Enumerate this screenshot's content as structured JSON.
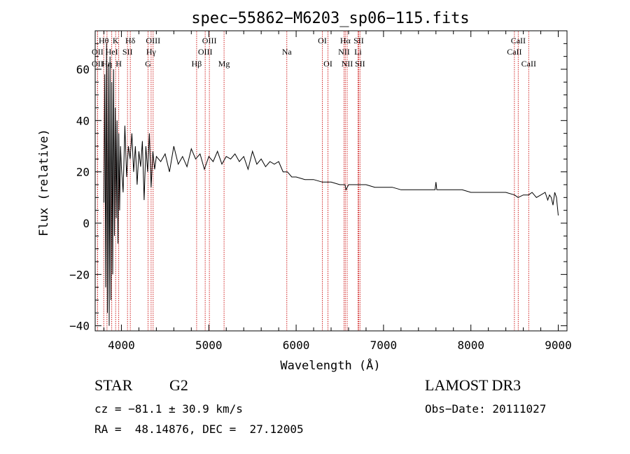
{
  "chart_data": {
    "type": "line",
    "title": "spec−55862−M6203_sp06−115.fits",
    "xlabel": "Wavelength (Å)",
    "ylabel": "Flux (relative)",
    "xlim": [
      3700,
      9100
    ],
    "ylim": [
      -42,
      75
    ],
    "xticks": [
      4000,
      5000,
      6000,
      7000,
      8000,
      9000
    ],
    "yticks": [
      -40,
      -20,
      0,
      20,
      40,
      60
    ],
    "ytick_labels": [
      "−40",
      "−20",
      "0",
      "20",
      "40",
      "60"
    ],
    "series": [
      {
        "name": "flux",
        "x": [
          3800,
          3810,
          3820,
          3830,
          3840,
          3850,
          3860,
          3870,
          3880,
          3890,
          3900,
          3910,
          3920,
          3930,
          3940,
          3950,
          3960,
          3970,
          3980,
          3990,
          4000,
          4020,
          4040,
          4060,
          4080,
          4100,
          4120,
          4140,
          4160,
          4180,
          4200,
          4220,
          4240,
          4260,
          4280,
          4300,
          4320,
          4340,
          4360,
          4380,
          4400,
          4450,
          4500,
          4550,
          4600,
          4650,
          4700,
          4750,
          4800,
          4850,
          4900,
          4950,
          5000,
          5050,
          5100,
          5150,
          5200,
          5250,
          5300,
          5350,
          5400,
          5450,
          5500,
          5550,
          5600,
          5650,
          5700,
          5750,
          5800,
          5850,
          5900,
          5950,
          6000,
          6100,
          6200,
          6300,
          6400,
          6500,
          6560,
          6570,
          6600,
          6700,
          6800,
          6900,
          7000,
          7100,
          7200,
          7300,
          7400,
          7500,
          7590,
          7600,
          7610,
          7700,
          7800,
          7900,
          8000,
          8100,
          8200,
          8300,
          8400,
          8500,
          8540,
          8600,
          8660,
          8700,
          8750,
          8800,
          8850,
          8880,
          8900,
          8920,
          8940,
          8960,
          8980,
          9000
        ],
        "y": [
          8,
          58,
          -25,
          70,
          -35,
          62,
          -40,
          65,
          -30,
          55,
          -20,
          60,
          -5,
          45,
          2,
          40,
          -8,
          35,
          5,
          30,
          22,
          12,
          38,
          18,
          30,
          25,
          35,
          20,
          30,
          15,
          28,
          22,
          32,
          9,
          30,
          20,
          35,
          14,
          28,
          21,
          26,
          24,
          27,
          20,
          30,
          23,
          26,
          22,
          29,
          25,
          27,
          21,
          26,
          24,
          28,
          23,
          26,
          25,
          27,
          24,
          26,
          21,
          28,
          23,
          25,
          22,
          24,
          23,
          24,
          20,
          20,
          18,
          18,
          17,
          17,
          16,
          16,
          15,
          15,
          13,
          15,
          15,
          15,
          14,
          14,
          14,
          13,
          13,
          13,
          13,
          13,
          16,
          13,
          13,
          13,
          13,
          12,
          12,
          12,
          12,
          12,
          11,
          10,
          11,
          11,
          12,
          10,
          11,
          12,
          9,
          11,
          10,
          7,
          12,
          10,
          3
        ]
      }
    ],
    "lines": [
      {
        "label": "Hθ",
        "x": 3798,
        "row": 1
      },
      {
        "label": "OII",
        "x": 3727,
        "row": 2
      },
      {
        "label": "OII",
        "x": 3727,
        "row": 3
      },
      {
        "label": "K",
        "x": 3934,
        "row": 1
      },
      {
        "label": "HeI",
        "x": 3889,
        "row": 2
      },
      {
        "label": "Hη",
        "x": 3835,
        "row": 3
      },
      {
        "label": "SII",
        "x": 4070,
        "row": 2
      },
      {
        "label": "H",
        "x": 3969,
        "row": 3
      },
      {
        "label": "Hδ",
        "x": 4102,
        "row": 1
      },
      {
        "label": "OIII",
        "x": 4363,
        "row": 1
      },
      {
        "label": "Hγ",
        "x": 4340,
        "row": 2
      },
      {
        "label": "G",
        "x": 4305,
        "row": 3
      },
      {
        "label": "Hβ",
        "x": 4861,
        "row": 3
      },
      {
        "label": "OIII",
        "x": 5007,
        "row": 1
      },
      {
        "label": "OIII",
        "x": 4959,
        "row": 2
      },
      {
        "label": "Mg",
        "x": 5175,
        "row": 3
      },
      {
        "label": "Na",
        "x": 5893,
        "row": 2
      },
      {
        "label": "OI",
        "x": 6300,
        "row": 1
      },
      {
        "label": "OI",
        "x": 6364,
        "row": 3
      },
      {
        "label": "Hα",
        "x": 6563,
        "row": 1
      },
      {
        "label": "SII",
        "x": 6716,
        "row": 1
      },
      {
        "label": "NII",
        "x": 6548,
        "row": 2
      },
      {
        "label": "Li",
        "x": 6708,
        "row": 2
      },
      {
        "label": "NII",
        "x": 6584,
        "row": 3
      },
      {
        "label": "SII",
        "x": 6731,
        "row": 3
      },
      {
        "label": "CaII",
        "x": 8542,
        "row": 1
      },
      {
        "label": "CaII",
        "x": 8498,
        "row": 2
      },
      {
        "label": "CaII",
        "x": 8662,
        "row": 3
      }
    ]
  },
  "info": {
    "object_class": "STAR",
    "subclass": "G2",
    "survey": "LAMOST DR3",
    "cz": "cz = −81.1 ± 30.9 km/s",
    "obs_date": "Obs−Date: 20111027",
    "coords": "RA =  48.14876, DEC =  27.12005"
  },
  "colors": {
    "axis": "#000000",
    "spectrum": "#000000",
    "marker_line": "#d02020"
  }
}
